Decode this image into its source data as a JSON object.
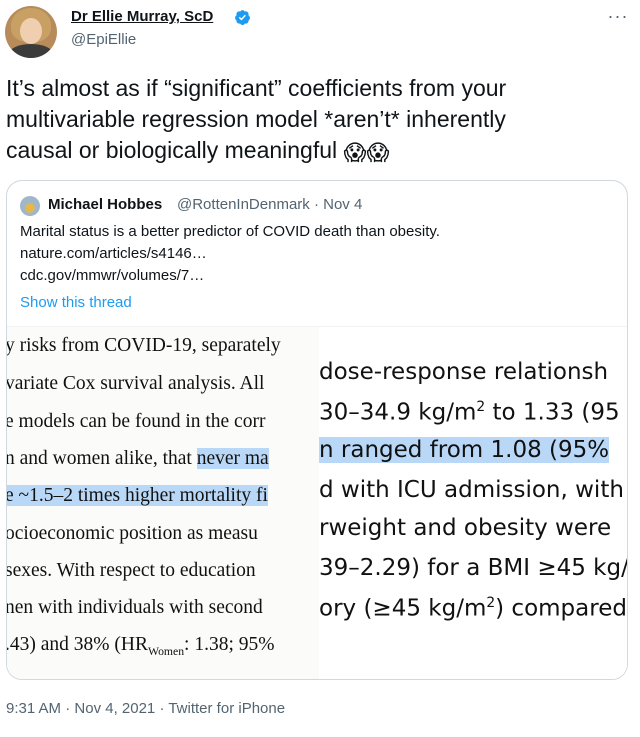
{
  "author": {
    "display_name": "Dr Ellie Murray, ScD",
    "handle": "@EpiEllie"
  },
  "tweet": {
    "lines": [
      "It’s almost as if “significant” coefficients from your",
      "multivariable regression model *aren’t* inherently",
      "causal or biologically meaningful"
    ],
    "emoji": "😱😱"
  },
  "quote": {
    "name": "Michael Hobbes",
    "handle_date": "@RottenInDenmark · Nov 4",
    "text": "Marital status is a better predictor of COVID death than obesity.",
    "link1": "nature.com/articles/s4146…",
    "link2": "cdc.gov/mmwr/volumes/7…",
    "show_thread": "Show this thread"
  },
  "left_clip": [
    {
      "pre": "y risks from COVID-19, separately",
      "hl": "",
      "post": ""
    },
    {
      "pre": "variate Cox survival analysis. All",
      "hl": "",
      "post": ""
    },
    {
      "pre": "e models can be found in the corr",
      "hl": "",
      "post": ""
    },
    {
      "pre": "n and women alike, that ",
      "hl": "never ma",
      "post": ""
    },
    {
      "pre": "",
      "hl": "e ~1.5–2 times higher mortality fi",
      "post": ""
    },
    {
      "pre": "ocioeconomic position as measu",
      "hl": "",
      "post": ""
    },
    {
      "pre": "sexes. With respect to education",
      "hl": "",
      "post": ""
    },
    {
      "pre": "nen with individuals with second",
      "hl": "",
      "post": ""
    },
    {
      "pre": ".43) and 38% (HR",
      "hl": "",
      "post": "",
      "sub": "Women",
      "tail": ": 1.38; 95%"
    }
  ],
  "right_clip": [
    {
      "pre": " dose-response relationsh",
      "hl": ""
    },
    {
      "pre": "30–34.9 kg/m",
      "sup": "2",
      "post": " to 1.33 (95",
      "hl": ""
    },
    {
      "pre": "",
      "hl": "n ranged from 1.08 (95%"
    },
    {
      "pre": "d with ICU admission, with",
      "hl": ""
    },
    {
      "pre": "rweight and obesity were",
      "hl": ""
    },
    {
      "pre": "39–2.29) for a BMI ≥45 kg/",
      "hl": ""
    },
    {
      "pre": "ory (≥45 kg/m",
      "sup": "2",
      "post": ") compared",
      "hl": ""
    }
  ],
  "meta": {
    "time": "9:31 AM",
    "date": "Nov 4, 2021",
    "source": "Twitter for iPhone"
  },
  "colors": {
    "link": "#1d9bf0",
    "muted": "#536471",
    "highlight": "#b9d8f7",
    "verified": "#1d9bf0"
  },
  "icons": {
    "verified": "verified-badge-icon",
    "more": "more-horizontal-icon"
  }
}
